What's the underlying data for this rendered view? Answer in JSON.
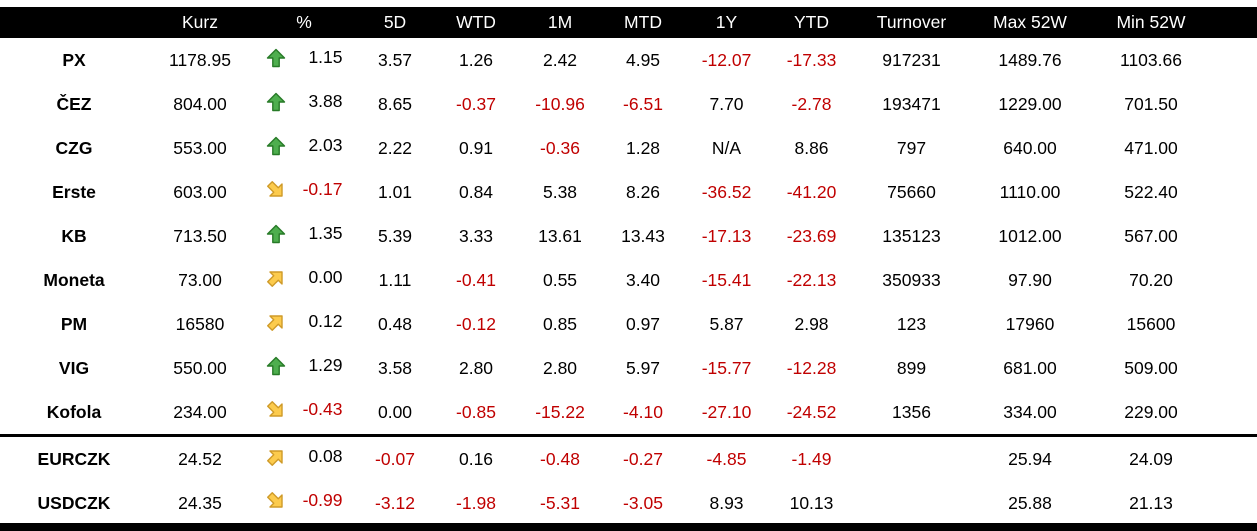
{
  "chart_data": {
    "type": "table",
    "title": "Czech market quotes table",
    "columns": [
      "",
      "Kurz",
      "%",
      "5D",
      "WTD",
      "1M",
      "MTD",
      "1Y",
      "YTD",
      "Turnover",
      "Max 52W",
      "Min 52W"
    ],
    "rows": [
      {
        "ticker": "PX",
        "arrow": "green-up",
        "separator_above": false,
        "values": [
          "1178.95",
          "1.15",
          "3.57",
          "1.26",
          "2.42",
          "4.95",
          "-12.07",
          "-17.33",
          "917231",
          "1489.76",
          "1103.66"
        ]
      },
      {
        "ticker": "ČEZ",
        "arrow": "green-up",
        "separator_above": false,
        "values": [
          "804.00",
          "3.88",
          "8.65",
          "-0.37",
          "-10.96",
          "-6.51",
          "7.70",
          "-2.78",
          "193471",
          "1229.00",
          "701.50"
        ]
      },
      {
        "ticker": "CZG",
        "arrow": "green-up",
        "separator_above": false,
        "values": [
          "553.00",
          "2.03",
          "2.22",
          "0.91",
          "-0.36",
          "1.28",
          "N/A",
          "8.86",
          "797",
          "640.00",
          "471.00"
        ]
      },
      {
        "ticker": "Erste",
        "arrow": "yellow-down-right",
        "separator_above": false,
        "values": [
          "603.00",
          "-0.17",
          "1.01",
          "0.84",
          "5.38",
          "8.26",
          "-36.52",
          "-41.20",
          "75660",
          "1110.00",
          "522.40"
        ]
      },
      {
        "ticker": "KB",
        "arrow": "green-up",
        "separator_above": false,
        "values": [
          "713.50",
          "1.35",
          "5.39",
          "3.33",
          "13.61",
          "13.43",
          "-17.13",
          "-23.69",
          "135123",
          "1012.00",
          "567.00"
        ]
      },
      {
        "ticker": "Moneta",
        "arrow": "yellow-up-right",
        "separator_above": false,
        "values": [
          "73.00",
          "0.00",
          "1.11",
          "-0.41",
          "0.55",
          "3.40",
          "-15.41",
          "-22.13",
          "350933",
          "97.90",
          "70.20"
        ]
      },
      {
        "ticker": "PM",
        "arrow": "yellow-up-right",
        "separator_above": false,
        "values": [
          "16580",
          "0.12",
          "0.48",
          "-0.12",
          "0.85",
          "0.97",
          "5.87",
          "2.98",
          "123",
          "17960",
          "15600"
        ]
      },
      {
        "ticker": "VIG",
        "arrow": "green-up",
        "separator_above": false,
        "values": [
          "550.00",
          "1.29",
          "3.58",
          "2.80",
          "2.80",
          "5.97",
          "-15.77",
          "-12.28",
          "899",
          "681.00",
          "509.00"
        ]
      },
      {
        "ticker": "Kofola",
        "arrow": "yellow-down-right",
        "separator_above": false,
        "values": [
          "234.00",
          "-0.43",
          "0.00",
          "-0.85",
          "-15.22",
          "-4.10",
          "-27.10",
          "-24.52",
          "1356",
          "334.00",
          "229.00"
        ]
      },
      {
        "ticker": "EURCZK",
        "arrow": "yellow-up-right",
        "separator_above": true,
        "values": [
          "24.52",
          "0.08",
          "-0.07",
          "0.16",
          "-0.48",
          "-0.27",
          "-4.85",
          "-1.49",
          "",
          "25.94",
          "24.09"
        ]
      },
      {
        "ticker": "USDCZK",
        "arrow": "yellow-down-right",
        "separator_above": false,
        "values": [
          "24.35",
          "-0.99",
          "-3.12",
          "-1.98",
          "-5.31",
          "-3.05",
          "8.93",
          "10.13",
          "",
          "25.88",
          "21.13"
        ]
      }
    ],
    "layout": {
      "legend": "none",
      "grid": "off",
      "header_position": "top",
      "section_break_before_row": "EURCZK"
    }
  },
  "icons": {
    "green-up": "arrow-up-icon",
    "yellow-up-right": "arrow-up-right-icon",
    "yellow-down-right": "arrow-down-right-icon"
  },
  "colors": {
    "header_bg": "#000000",
    "header_text": "#ffffff",
    "negative_value": "#c00000",
    "positive_value": "#000000",
    "arrow_green_fill": "#4eae4e",
    "arrow_green_stroke": "#277a27",
    "arrow_yellow_fill": "#fccb4d",
    "arrow_yellow_stroke": "#cf9a28",
    "divider": "#000000"
  }
}
